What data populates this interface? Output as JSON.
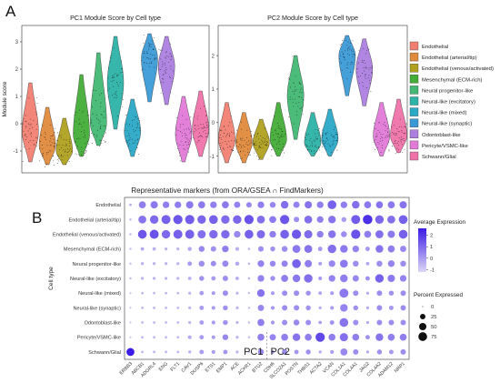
{
  "panel_a_label": "A",
  "panel_b_label": "B",
  "colors": {
    "Endothelial": "#f07f72",
    "Endothelial (arterial/tip)": "#e08a3c",
    "Endothelial (venous/activated)": "#b0a11f",
    "Mesenchymal (ECM-rich)": "#43ad37",
    "Neural progenitor-like": "#42b874",
    "Neural-like (excitatory)": "#2cb3a8",
    "Neural-like (mixed)": "#2aa9c7",
    "Neural-like (synaptic)": "#3b9ad6",
    "Odontoblast-like": "#ac7fe0",
    "Pericyte/VSMC-like": "#e27ad8",
    "Schwann/Glial": "#ef72a9"
  },
  "chart_data": [
    {
      "type": "violin",
      "title": "PC1 Module Score by Cell type",
      "ylabel": "Module score",
      "yticks": [
        -1,
        0,
        1,
        2,
        3
      ],
      "ylim": [
        -1.8,
        3.6
      ],
      "categories": [
        "Endothelial",
        "Endothelial (arterial/tip)",
        "Endothelial (venous/activated)",
        "Mesenchymal (ECM-rich)",
        "Neural progenitor-like",
        "Neural-like (excitatory)",
        "Neural-like (mixed)",
        "Neural-like (synaptic)",
        "Odontoblast-like",
        "Pericyte/VSMC-like",
        "Schwann/Glial"
      ],
      "medians": [
        -0.3,
        -0.8,
        -1.0,
        -0.4,
        0.0,
        1.5,
        -0.3,
        2.4,
        2.1,
        -0.4,
        -0.2
      ],
      "ranges": [
        [
          -1.4,
          1.5
        ],
        [
          -1.5,
          0.6
        ],
        [
          -1.5,
          0.2
        ],
        [
          -1.2,
          1.8
        ],
        [
          -0.8,
          2.6
        ],
        [
          -0.2,
          3.2
        ],
        [
          -1.2,
          0.9
        ],
        [
          0.8,
          3.3
        ],
        [
          0.7,
          3.2
        ],
        [
          -1.4,
          1.0
        ],
        [
          -1.2,
          1.2
        ]
      ]
    },
    {
      "type": "violin",
      "title": "PC2 Module Score by Cell type",
      "ylabel": "",
      "yticks": [
        -1,
        0,
        1,
        2
      ],
      "ylim": [
        -1.5,
        2.9
      ],
      "categories": [
        "Endothelial",
        "Endothelial (arterial/tip)",
        "Endothelial (venous/activated)",
        "Mesenchymal (ECM-rich)",
        "Neural progenitor-like",
        "Neural-like (excitatory)",
        "Neural-like (mixed)",
        "Neural-like (synaptic)",
        "Odontoblast-like",
        "Pericyte/VSMC-like",
        "Schwann/Glial"
      ],
      "medians": [
        -0.5,
        -0.6,
        -0.6,
        -0.5,
        0.8,
        -0.6,
        -0.5,
        2.0,
        1.6,
        -0.4,
        -0.4
      ],
      "ranges": [
        [
          -1.2,
          0.6
        ],
        [
          -1.2,
          0.3
        ],
        [
          -1.1,
          0.1
        ],
        [
          -1.0,
          0.6
        ],
        [
          -0.5,
          2.0
        ],
        [
          -1.0,
          0.3
        ],
        [
          -1.0,
          0.4
        ],
        [
          0.8,
          2.6
        ],
        [
          0.5,
          2.5
        ],
        [
          -1.0,
          0.6
        ],
        [
          -0.9,
          0.7
        ]
      ]
    },
    {
      "type": "dotplot",
      "title": "Representative markers (from ORA/GSEA ∩ FindMarkers)",
      "ylabel": "Cell type",
      "rows": [
        "Endothelial",
        "Endothelial (arterial/tip)",
        "Endothelial (venous/activated)",
        "Mesenchymal (ECM-rich)",
        "Neural progenitor-like",
        "Neural-like (excitatory)",
        "Neural-like (mixed)",
        "Neural-like (synaptic)",
        "Odontoblast-like",
        "Pericyte/VSMC-like",
        "Schwann/Glial"
      ],
      "columns": [
        "ERBB3",
        "ABCB1",
        "ADGRL4",
        "ENG",
        "FLT1",
        "CAV1",
        "DUSP6",
        "ETS1",
        "EMP1",
        "ACE",
        "ACKR1",
        "BTG2",
        "CDH6",
        "SLCO2A1",
        "POSTN",
        "THBS1",
        "ACTA2",
        "VCAN",
        "COL1A1",
        "COL4A1",
        "JAG2",
        "COL4A2",
        "ADAM12",
        "NRP1"
      ],
      "group_labels": [
        "PC1",
        "PC2"
      ],
      "group_split_after": "BTG2",
      "legend_expression_title": "Average Expression",
      "legend_expression_ticks": [
        2,
        1,
        0,
        -1
      ],
      "legend_percent_title": "Percent Expressed",
      "legend_percent_ticks": [
        0,
        25,
        50,
        75
      ],
      "avg_expression": [
        [
          -0.3,
          0.6,
          0.7,
          0.6,
          0.6,
          0.7,
          0.7,
          0.6,
          0.7,
          0.5,
          0.4,
          0.6,
          0.4,
          0.9,
          0.5,
          0.8,
          0.6,
          1.2,
          0.6,
          0.9,
          0.7,
          0.8,
          0.7,
          0.8
        ],
        [
          -0.4,
          0.8,
          1.0,
          1.2,
          1.4,
          1.3,
          1.1,
          1.2,
          1.0,
          1.1,
          1.5,
          0.9,
          0.7,
          1.4,
          0.3,
          0.9,
          0.6,
          0.8,
          0.0,
          1.3,
          2.2,
          1.1,
          0.9,
          1.2
        ],
        [
          -0.5,
          1.4,
          1.5,
          1.0,
          1.2,
          1.2,
          0.9,
          1.0,
          1.0,
          0.4,
          1.2,
          1.0,
          0.6,
          1.2,
          1.4,
          1.0,
          0.6,
          0.8,
          0.3,
          1.5,
          0.6,
          0.9,
          0.7,
          1.2
        ],
        [
          -0.6,
          -0.3,
          -0.4,
          -0.5,
          -0.5,
          -0.3,
          0.4,
          0.2,
          0.6,
          -0.4,
          -0.6,
          0.3,
          0.2,
          0.3,
          0.7,
          0.8,
          0.1,
          0.9,
          0.7,
          0.5,
          0.1,
          0.8,
          0.6,
          0.4
        ],
        [
          -0.6,
          -0.4,
          -0.5,
          -0.5,
          -0.5,
          0.0,
          0.3,
          0.3,
          0.4,
          -0.2,
          -0.6,
          0.5,
          0.4,
          0.5,
          1.2,
          0.6,
          -0.1,
          0.4,
          0.7,
          0.3,
          -0.2,
          0.3,
          0.5,
          0.3
        ],
        [
          -0.6,
          -0.5,
          -0.5,
          -0.5,
          -0.5,
          -0.4,
          0.2,
          0.0,
          0.3,
          -0.3,
          -0.6,
          0.5,
          0.2,
          0.6,
          0.7,
          0.9,
          0.0,
          0.5,
          0.6,
          0.4,
          0.2,
          1.2,
          0.7,
          0.5
        ],
        [
          -0.6,
          -0.5,
          -0.5,
          -0.5,
          -0.5,
          -0.5,
          0.0,
          0.0,
          0.3,
          -0.5,
          -0.6,
          0.8,
          0.0,
          0.3,
          0.3,
          0.2,
          -0.2,
          0.0,
          0.7,
          0.3,
          -0.3,
          0.3,
          0.2,
          0.3
        ],
        [
          -0.6,
          -0.5,
          -0.5,
          -0.5,
          -0.5,
          -0.5,
          0.0,
          0.0,
          0.2,
          -0.5,
          -0.6,
          0.4,
          0.1,
          0.3,
          0.3,
          0.2,
          -0.3,
          0.0,
          0.5,
          0.2,
          -0.3,
          0.3,
          0.1,
          0.3
        ],
        [
          -0.6,
          -0.5,
          -0.5,
          -0.5,
          -0.5,
          -0.5,
          0.0,
          0.0,
          0.2,
          -0.5,
          -0.6,
          0.6,
          0.1,
          0.3,
          0.4,
          0.3,
          -0.1,
          0.2,
          0.8,
          0.3,
          -0.3,
          0.3,
          0.3,
          0.3
        ],
        [
          -0.6,
          -0.5,
          -0.5,
          -0.5,
          -0.5,
          -0.3,
          0.0,
          0.0,
          0.4,
          -0.5,
          -0.6,
          0.6,
          0.5,
          0.6,
          0.8,
          0.6,
          1.7,
          0.6,
          0.9,
          0.6,
          0.2,
          0.8,
          0.6,
          0.6
        ],
        [
          2.6,
          -0.5,
          -0.5,
          -0.5,
          -0.5,
          -0.4,
          0.0,
          0.0,
          0.1,
          -0.5,
          -0.6,
          0.4,
          0.0,
          0.3,
          0.1,
          0.2,
          -0.3,
          0.0,
          0.4,
          0.3,
          -0.3,
          0.2,
          0.1,
          0.3
        ]
      ],
      "pct_expressed": [
        [
          3,
          45,
          50,
          40,
          40,
          50,
          45,
          40,
          45,
          35,
          25,
          40,
          30,
          55,
          35,
          50,
          40,
          75,
          40,
          55,
          45,
          45,
          45,
          50
        ],
        [
          2,
          60,
          70,
          80,
          85,
          85,
          70,
          75,
          70,
          70,
          85,
          60,
          45,
          85,
          25,
          60,
          40,
          55,
          20,
          80,
          90,
          70,
          60,
          75
        ],
        [
          2,
          75,
          80,
          70,
          80,
          80,
          65,
          70,
          70,
          40,
          75,
          65,
          40,
          75,
          85,
          65,
          40,
          55,
          30,
          85,
          45,
          60,
          50,
          75
        ],
        [
          2,
          8,
          8,
          5,
          5,
          12,
          30,
          25,
          40,
          10,
          3,
          25,
          20,
          30,
          60,
          60,
          15,
          70,
          55,
          40,
          15,
          55,
          45,
          35
        ],
        [
          2,
          5,
          5,
          5,
          5,
          15,
          30,
          25,
          35,
          12,
          3,
          40,
          30,
          35,
          75,
          50,
          10,
          40,
          60,
          30,
          8,
          30,
          40,
          30
        ],
        [
          2,
          5,
          5,
          5,
          5,
          8,
          20,
          15,
          25,
          8,
          3,
          40,
          20,
          45,
          55,
          70,
          10,
          40,
          55,
          35,
          15,
          70,
          50,
          40
        ],
        [
          1,
          3,
          3,
          3,
          3,
          5,
          15,
          10,
          25,
          5,
          2,
          55,
          10,
          25,
          25,
          20,
          8,
          10,
          80,
          25,
          5,
          25,
          20,
          25
        ],
        [
          1,
          3,
          3,
          3,
          3,
          5,
          15,
          10,
          20,
          5,
          2,
          35,
          10,
          25,
          25,
          20,
          5,
          10,
          55,
          20,
          5,
          25,
          15,
          25
        ],
        [
          1,
          3,
          3,
          3,
          3,
          5,
          15,
          10,
          20,
          5,
          2,
          45,
          10,
          25,
          30,
          25,
          8,
          15,
          75,
          25,
          5,
          25,
          25,
          25
        ],
        [
          1,
          3,
          3,
          3,
          3,
          10,
          15,
          10,
          30,
          5,
          2,
          45,
          35,
          45,
          55,
          45,
          85,
          45,
          65,
          45,
          15,
          55,
          45,
          45
        ],
        [
          60,
          3,
          3,
          3,
          3,
          5,
          15,
          10,
          15,
          5,
          2,
          30,
          8,
          25,
          15,
          20,
          5,
          10,
          45,
          25,
          5,
          20,
          15,
          25
        ]
      ]
    }
  ]
}
